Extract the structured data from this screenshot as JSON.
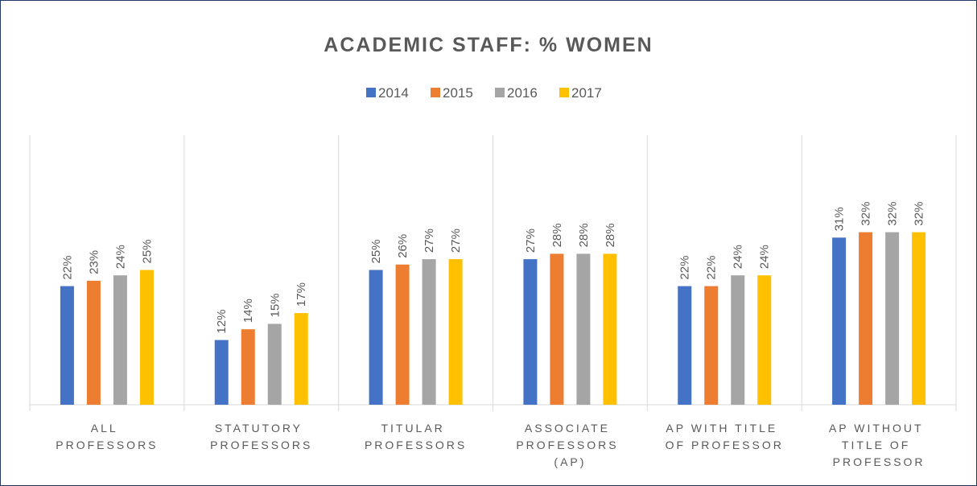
{
  "chart_data": {
    "type": "bar",
    "title": "ACADEMIC STAFF: % WOMEN",
    "categories": [
      "ALL PROFESSORS",
      "STATUTORY PROFESSORS",
      "TITULAR PROFESSORS",
      "ASSOCIATE PROFESSORS (AP)",
      "AP WITH TITLE OF PROFESSOR",
      "AP WITHOUT TITLE OF PROFESSOR"
    ],
    "series": [
      {
        "name": "2014",
        "color": "#4472c4",
        "values": [
          22,
          12,
          25,
          27,
          22,
          31
        ],
        "value_labels": [
          "22%",
          "12%",
          "25%",
          "27%",
          "22%",
          "31%"
        ]
      },
      {
        "name": "2015",
        "color": "#ed7d31",
        "values": [
          23,
          14,
          26,
          28,
          22,
          32
        ],
        "value_labels": [
          "23%",
          "14%",
          "26%",
          "28%",
          "22%",
          "32%"
        ]
      },
      {
        "name": "2016",
        "color": "#a5a5a5",
        "values": [
          24,
          15,
          27,
          28,
          24,
          32
        ],
        "value_labels": [
          "24%",
          "15%",
          "27%",
          "28%",
          "24%",
          "32%"
        ]
      },
      {
        "name": "2017",
        "color": "#ffc000",
        "values": [
          25,
          17,
          27,
          28,
          24,
          32
        ],
        "value_labels": [
          "25%",
          "17%",
          "27%",
          "28%",
          "24%",
          "32%"
        ]
      }
    ],
    "ylim": [
      0,
      50
    ],
    "legend": "top"
  }
}
